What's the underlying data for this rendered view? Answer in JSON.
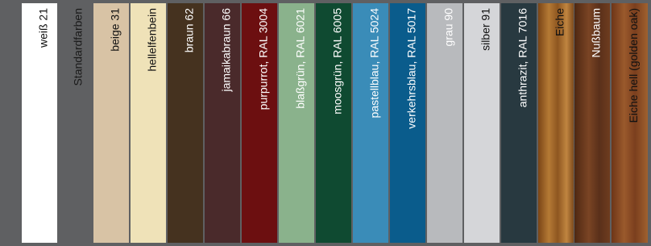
{
  "standard_label": "Standardfarben",
  "swatches": [
    {
      "label": "weiß 21"
    },
    {
      "label": "beige 31"
    },
    {
      "label": "hellelfenbein"
    },
    {
      "label": "braun 62"
    },
    {
      "label": "jamaikabraun 66"
    },
    {
      "label": "purpurrot, RAL 3004"
    },
    {
      "label": "blaßgrün, RAL 6021"
    },
    {
      "label": "moosgrün, RAL 6005"
    },
    {
      "label": "pastellblau, RAL 5024"
    },
    {
      "label": "verkehrsblau, RAL 5017"
    },
    {
      "label": "grau 90"
    },
    {
      "label": "silber 91"
    },
    {
      "label": "anthrazit, RAL 7016"
    },
    {
      "label": "Eiche"
    },
    {
      "label": "Nußbaum"
    },
    {
      "label": "Eiche hell (golden oak)"
    }
  ]
}
